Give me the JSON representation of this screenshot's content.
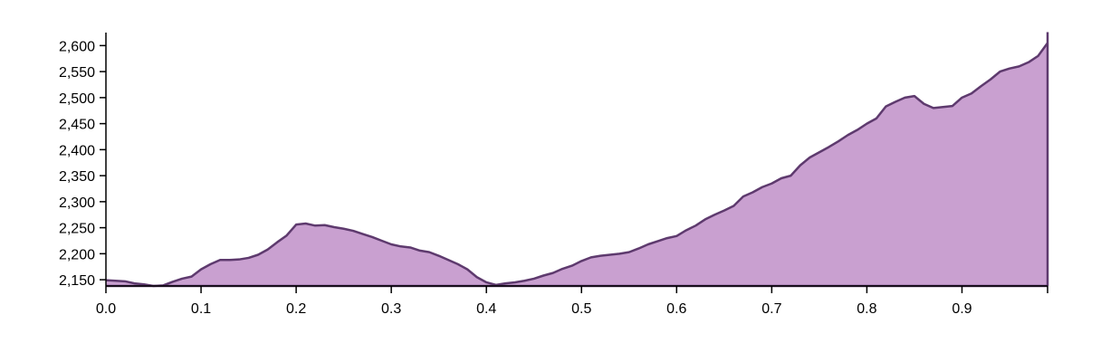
{
  "chart_data": {
    "type": "area",
    "title": "",
    "xlabel": "",
    "ylabel": "",
    "xlim": [
      0,
      0.99
    ],
    "ylim": [
      2138,
      2625
    ],
    "x_ticks": [
      0.0,
      0.1,
      0.2,
      0.3,
      0.4,
      0.5,
      0.6,
      0.7,
      0.8,
      0.9
    ],
    "x_tick_labels": [
      "0.0",
      "0.1",
      "0.2",
      "0.3",
      "0.4",
      "0.5",
      "0.6",
      "0.7",
      "0.8",
      "0.9"
    ],
    "y_ticks": [
      2150,
      2200,
      2250,
      2300,
      2350,
      2400,
      2450,
      2500,
      2550,
      2600
    ],
    "y_tick_labels": [
      "2,150",
      "2,200",
      "2,250",
      "2,300",
      "2,350",
      "2,400",
      "2,450",
      "2,500",
      "2,550",
      "2,600"
    ],
    "grid": false,
    "legend": "none",
    "colors": {
      "fill": "#c9a0d0",
      "stroke": "#5e3a6e",
      "axis": "#000000"
    },
    "series": [
      {
        "x": [
          0.0,
          0.01,
          0.02,
          0.03,
          0.04,
          0.05,
          0.06,
          0.07,
          0.08,
          0.09,
          0.1,
          0.11,
          0.12,
          0.13,
          0.14,
          0.15,
          0.16,
          0.17,
          0.18,
          0.19,
          0.2,
          0.21,
          0.22,
          0.23,
          0.24,
          0.25,
          0.26,
          0.27,
          0.28,
          0.29,
          0.3,
          0.31,
          0.32,
          0.33,
          0.34,
          0.35,
          0.36,
          0.37,
          0.38,
          0.39,
          0.4,
          0.41,
          0.42,
          0.43,
          0.44,
          0.45,
          0.46,
          0.47,
          0.48,
          0.49,
          0.5,
          0.51,
          0.52,
          0.53,
          0.54,
          0.55,
          0.56,
          0.57,
          0.58,
          0.59,
          0.6,
          0.61,
          0.62,
          0.63,
          0.64,
          0.65,
          0.66,
          0.67,
          0.68,
          0.69,
          0.7,
          0.71,
          0.72,
          0.73,
          0.74,
          0.75,
          0.76,
          0.77,
          0.78,
          0.79,
          0.8,
          0.81,
          0.82,
          0.83,
          0.84,
          0.85,
          0.86,
          0.87,
          0.88,
          0.89,
          0.9,
          0.91,
          0.92,
          0.93,
          0.94,
          0.95,
          0.96,
          0.97,
          0.98,
          0.99
        ],
        "values": [
          2149,
          2148,
          2147,
          2143,
          2141,
          2138,
          2139,
          2146,
          2152,
          2156,
          2170,
          2180,
          2188,
          2188,
          2189,
          2192,
          2198,
          2208,
          2222,
          2235,
          2256,
          2258,
          2254,
          2255,
          2251,
          2248,
          2244,
          2238,
          2232,
          2225,
          2218,
          2214,
          2212,
          2206,
          2203,
          2196,
          2188,
          2180,
          2170,
          2155,
          2145,
          2140,
          2143,
          2145,
          2148,
          2152,
          2158,
          2163,
          2171,
          2177,
          2186,
          2193,
          2196,
          2198,
          2200,
          2203,
          2210,
          2218,
          2224,
          2230,
          2234,
          2245,
          2254,
          2266,
          2275,
          2283,
          2292,
          2310,
          2318,
          2328,
          2335,
          2345,
          2350,
          2370,
          2385,
          2395,
          2405,
          2416,
          2428,
          2438,
          2450,
          2460,
          2483,
          2492,
          2500,
          2503,
          2488,
          2480,
          2482,
          2484,
          2500,
          2508,
          2522,
          2535,
          2550,
          2556,
          2560,
          2568,
          2580,
          2605
        ]
      }
    ]
  }
}
